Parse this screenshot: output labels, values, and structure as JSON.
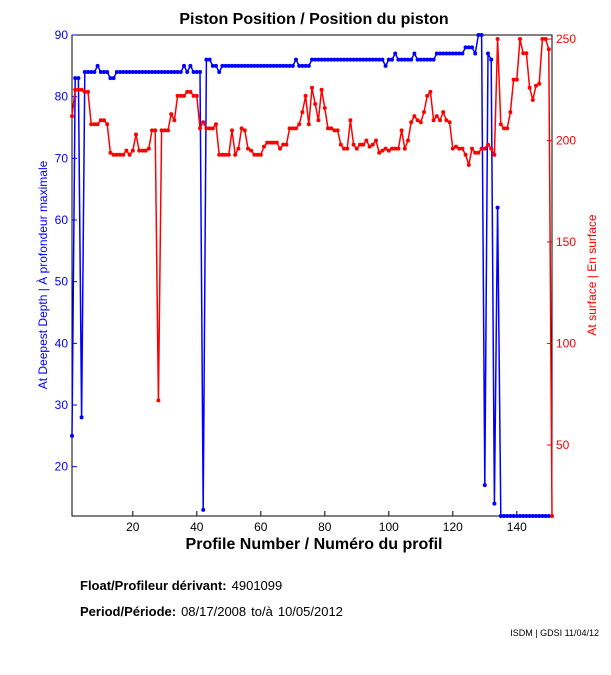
{
  "chart_data": {
    "type": "line",
    "title": "Piston Position / Position du piston",
    "xlabel": "Profile Number / Numéro du profil",
    "xlim": [
      1,
      151
    ],
    "x_ticks": [
      20,
      40,
      60,
      80,
      100,
      120,
      140
    ],
    "y_left": {
      "label": "At Deepest Depth | À profondeur maximale",
      "lim": [
        12,
        90
      ],
      "ticks": [
        20,
        30,
        40,
        50,
        60,
        70,
        80,
        90
      ],
      "color": "#0000ff"
    },
    "y_right": {
      "label": "At surface | En surface",
      "lim": [
        15,
        252
      ],
      "ticks": [
        50,
        100,
        150,
        200,
        250
      ],
      "color": "#ff0000"
    },
    "grid": false,
    "series": [
      {
        "axis": "left",
        "color": "#0000ff",
        "x": [
          1,
          2,
          3,
          4,
          5,
          6,
          7,
          8,
          9,
          10,
          11,
          12,
          13,
          14,
          15,
          16,
          17,
          18,
          19,
          20,
          21,
          22,
          23,
          24,
          25,
          26,
          27,
          28,
          29,
          30,
          31,
          32,
          33,
          34,
          35,
          36,
          37,
          38,
          39,
          40,
          41,
          42,
          43,
          44,
          45,
          46,
          47,
          48,
          49,
          50,
          51,
          52,
          53,
          54,
          55,
          56,
          57,
          58,
          59,
          60,
          61,
          62,
          63,
          64,
          65,
          66,
          67,
          68,
          69,
          70,
          71,
          72,
          73,
          74,
          75,
          76,
          77,
          78,
          79,
          80,
          81,
          82,
          83,
          84,
          85,
          86,
          87,
          88,
          89,
          90,
          91,
          92,
          93,
          94,
          95,
          96,
          97,
          98,
          99,
          100,
          101,
          102,
          103,
          104,
          105,
          106,
          107,
          108,
          109,
          110,
          111,
          112,
          113,
          114,
          115,
          116,
          117,
          118,
          119,
          120,
          121,
          122,
          123,
          124,
          125,
          126,
          127,
          128,
          129,
          130,
          131,
          132,
          133,
          134,
          135,
          136,
          137,
          138,
          139,
          140,
          141,
          142,
          143,
          144,
          145,
          146,
          147,
          148,
          149,
          150
        ],
        "y": [
          25,
          83,
          83,
          28,
          84,
          84,
          84,
          84,
          85,
          84,
          84,
          84,
          83,
          83,
          84,
          84,
          84,
          84,
          84,
          84,
          84,
          84,
          84,
          84,
          84,
          84,
          84,
          84,
          84,
          84,
          84,
          84,
          84,
          84,
          84,
          85,
          84,
          85,
          84,
          84,
          84,
          13,
          86,
          86,
          85,
          85,
          84,
          85,
          85,
          85,
          85,
          85,
          85,
          85,
          85,
          85,
          85,
          85,
          85,
          85,
          85,
          85,
          85,
          85,
          85,
          85,
          85,
          85,
          85,
          85,
          86,
          85,
          85,
          85,
          85,
          86,
          86,
          86,
          86,
          86,
          86,
          86,
          86,
          86,
          86,
          86,
          86,
          86,
          86,
          86,
          86,
          86,
          86,
          86,
          86,
          86,
          86,
          86,
          85,
          86,
          86,
          87,
          86,
          86,
          86,
          86,
          86,
          87,
          86,
          86,
          86,
          86,
          86,
          86,
          87,
          87,
          87,
          87,
          87,
          87,
          87,
          87,
          87,
          88,
          88,
          88,
          87,
          90,
          90,
          17,
          87,
          86,
          14,
          62,
          12,
          12,
          12,
          12,
          12,
          12,
          12,
          12,
          12,
          12,
          12,
          12,
          12,
          12,
          12,
          12
        ]
      },
      {
        "axis": "right",
        "color": "#ff0000",
        "x": [
          1,
          2,
          3,
          4,
          5,
          6,
          7,
          8,
          9,
          10,
          11,
          12,
          13,
          14,
          15,
          16,
          17,
          18,
          19,
          20,
          21,
          22,
          23,
          24,
          25,
          26,
          27,
          28,
          29,
          30,
          31,
          32,
          33,
          34,
          35,
          36,
          37,
          38,
          39,
          40,
          41,
          42,
          43,
          44,
          45,
          46,
          47,
          48,
          49,
          50,
          51,
          52,
          53,
          54,
          55,
          56,
          57,
          58,
          59,
          60,
          61,
          62,
          63,
          64,
          65,
          66,
          67,
          68,
          69,
          70,
          71,
          72,
          73,
          74,
          75,
          76,
          77,
          78,
          79,
          80,
          81,
          82,
          83,
          84,
          85,
          86,
          87,
          88,
          89,
          90,
          91,
          92,
          93,
          94,
          95,
          96,
          97,
          98,
          99,
          100,
          101,
          102,
          103,
          104,
          105,
          106,
          107,
          108,
          109,
          110,
          111,
          112,
          113,
          114,
          115,
          116,
          117,
          118,
          119,
          120,
          121,
          122,
          123,
          124,
          125,
          126,
          127,
          128,
          129,
          130,
          131,
          132,
          133,
          134,
          135,
          136,
          137,
          138,
          139,
          140,
          141,
          142,
          143,
          144,
          145,
          146,
          147,
          148,
          149,
          150,
          151
        ],
        "y": [
          212,
          225,
          225,
          225,
          224,
          224,
          208,
          208,
          208,
          210,
          210,
          208,
          194,
          193,
          193,
          193,
          193,
          195,
          193,
          195,
          203,
          195,
          195,
          195,
          196,
          205,
          205,
          72,
          205,
          205,
          205,
          213,
          210,
          222,
          222,
          222,
          224,
          224,
          222,
          222,
          206,
          209,
          206,
          206,
          206,
          208,
          193,
          193,
          193,
          193,
          205,
          193,
          196,
          206,
          205,
          196,
          195,
          193,
          193,
          193,
          197,
          199,
          199,
          199,
          199,
          196,
          198,
          198,
          206,
          206,
          206,
          208,
          214,
          222,
          208,
          226,
          218,
          210,
          225,
          216,
          206,
          206,
          205,
          205,
          198,
          196,
          196,
          210,
          198,
          196,
          198,
          198,
          200,
          197,
          198,
          200,
          194,
          195,
          196,
          195,
          196,
          196,
          196,
          205,
          196,
          200,
          209,
          212,
          210,
          209,
          214,
          222,
          224,
          210,
          212,
          210,
          214,
          210,
          209,
          196,
          197,
          196,
          196,
          193,
          188,
          196,
          194,
          194,
          196,
          196,
          198,
          196,
          193,
          250,
          208,
          206,
          206,
          214,
          230,
          230,
          250,
          243,
          243,
          226,
          220,
          227,
          228,
          250,
          250,
          245,
          15
        ]
      }
    ]
  },
  "info": {
    "float_label": "Float/Profileur dérivant:",
    "float_value": "4901099",
    "period_label": "Period/Période:",
    "period_start": "08/17/2008",
    "period_sep": "to/à",
    "period_end": "10/05/2012"
  },
  "footer": "ISDM | GDSI 11/04/12"
}
